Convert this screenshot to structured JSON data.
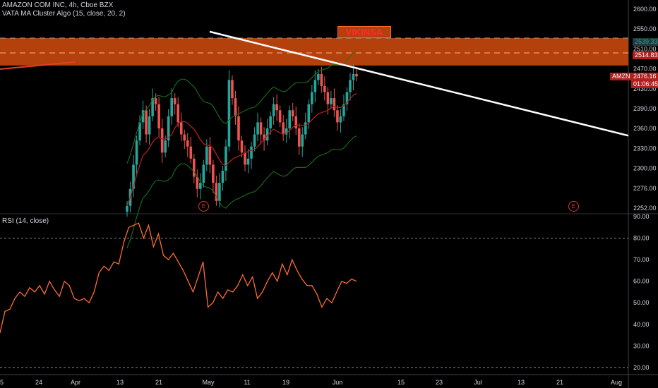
{
  "header": {
    "symbol_line": "AMAZON COM INC, 4h, Cboe BZX",
    "indicator_line": "VATA MA Cluster Algo (15, close, 20, 2)",
    "rsi_label": "RSI (14, close)"
  },
  "annotations": {
    "watermark_box": "VIKINSA",
    "earnings_marker": "E"
  },
  "price_tags": {
    "top_level": "2539.33",
    "level_2": "2514.83",
    "symbol": "AMZN",
    "last_price": "2476.16",
    "countdown": "01:06:45"
  },
  "colors": {
    "background": "#000000",
    "up_candle": "#26a69a",
    "down_candle": "#ef5350",
    "resistance_zone": "#b4400c",
    "trendline": "#ffffff",
    "rsi_line": "#ff6d2b",
    "band": "#1b7a1b"
  },
  "chart_data": [
    {
      "type": "candlestick",
      "title": "AMAZON COM INC, 4h, Cboe BZX",
      "y_ticks": [
        "2600.00",
        "2550.00",
        "2510.00",
        "2470.00",
        "2430.00",
        "2390.00",
        "2360.00",
        "2330.00",
        "2300.00",
        "2276.00",
        "2252.00"
      ],
      "x_ticks": [
        "5",
        "24",
        "Apr",
        "13",
        "21",
        "May",
        "11",
        "19",
        "Jun",
        "15",
        "23",
        "Jul",
        "13",
        "21",
        "Aug"
      ],
      "ylim": [
        2250,
        2600
      ],
      "resistance_zone": [
        2494,
        2539.33
      ],
      "horizontal_levels": [
        2539.33,
        2514.83
      ],
      "trendline": {
        "from": [
          0.0,
          2550
        ],
        "to": [
          1.0,
          2378
        ]
      },
      "last_price": 2476.16,
      "closes": [
        2262,
        2290,
        2330,
        2370,
        2400,
        2420,
        2380,
        2410,
        2440,
        2430,
        2390,
        2350,
        2370,
        2410,
        2440,
        2430,
        2400,
        2380,
        2370,
        2360,
        2340,
        2310,
        2290,
        2300,
        2330,
        2360,
        2330,
        2300,
        2270,
        2300,
        2320,
        2360,
        2470,
        2440,
        2410,
        2370,
        2350,
        2330,
        2340,
        2360,
        2380,
        2400,
        2380,
        2370,
        2390,
        2410,
        2430,
        2420,
        2400,
        2380,
        2390,
        2420,
        2410,
        2390,
        2360,
        2380,
        2400,
        2430,
        2450,
        2470,
        2480,
        2460,
        2450,
        2430,
        2440,
        2420,
        2400,
        2410,
        2430,
        2450,
        2470,
        2480,
        2476
      ]
    },
    {
      "type": "line",
      "title": "RSI (14, close)",
      "y_ticks": [
        "90.00",
        "80.00",
        "70.00",
        "60.00",
        "50.00",
        "40.00",
        "30.00",
        "20.00"
      ],
      "ylim": [
        17,
        91
      ],
      "bands": [
        80,
        20
      ],
      "values": [
        36,
        46,
        47,
        52,
        55,
        53,
        57,
        55,
        58,
        54,
        60,
        56,
        53,
        60,
        58,
        52,
        51,
        52,
        50,
        55,
        64,
        67,
        65,
        69,
        68,
        78,
        85,
        86,
        87,
        80,
        86,
        76,
        82,
        72,
        70,
        73,
        69,
        65,
        60,
        55,
        62,
        69,
        48,
        50,
        55,
        52,
        56,
        55,
        58,
        63,
        58,
        62,
        52,
        55,
        60,
        64,
        60,
        68,
        63,
        70,
        65,
        61,
        58,
        58,
        54,
        48,
        52,
        50,
        55,
        60,
        59,
        61,
        60
      ]
    }
  ]
}
